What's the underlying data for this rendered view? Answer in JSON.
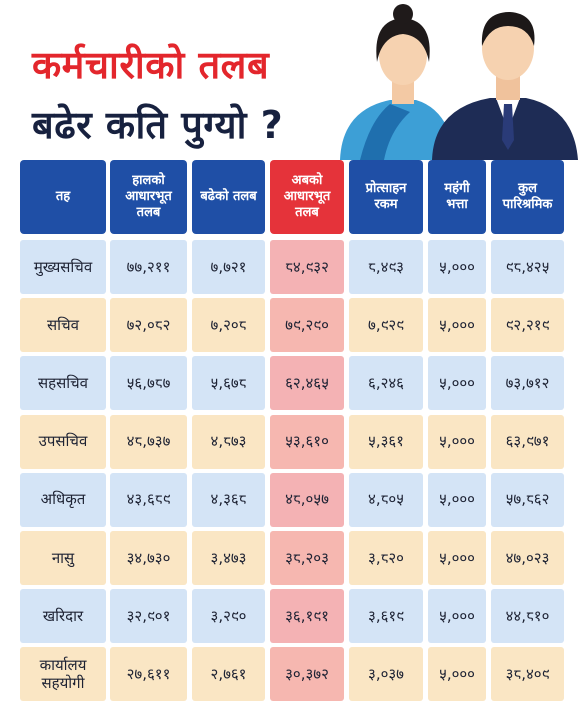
{
  "header": {
    "title_line1": "कर्मचारीको तलब",
    "title_line2": "बढेर कति पुग्यो ?"
  },
  "table": {
    "columns": [
      "तह",
      "हालको आधारभूत तलब",
      "बढेको तलब",
      "अबको आधारभूत तलब",
      "प्रोत्साहन रकम",
      "महंगी भत्ता",
      "कुल पारिश्रमिक"
    ],
    "rows": [
      [
        "मुख्यसचिव",
        "७७,२११",
        "७,७२१",
        "८४,९३२",
        "८,४९३",
        "५,०००",
        "९८,४२५"
      ],
      [
        "सचिव",
        "७२,०८२",
        "७,२०८",
        "७९,२९०",
        "७,९२९",
        "५,०००",
        "९२,२१९"
      ],
      [
        "सहसचिव",
        "५६,७८७",
        "५,६७८",
        "६२,४६५",
        "६,२४६",
        "५,०००",
        "७३,७१२"
      ],
      [
        "उपसचिव",
        "४८,७३७",
        "४,८७३",
        "५३,६१०",
        "५,३६१",
        "५,०००",
        "६३,९७१"
      ],
      [
        "अधिकृत",
        "४३,६८९",
        "४,३६८",
        "४८,०५७",
        "४,८०५",
        "५,०००",
        "५७,८६२"
      ],
      [
        "नासु",
        "३४,७३०",
        "३,४७३",
        "३८,२०३",
        "३,८२०",
        "५,०००",
        "४७,०२३"
      ],
      [
        "खरिदार",
        "३२,९०१",
        "३,२९०",
        "३६,१९१",
        "३,६१९",
        "५,०००",
        "४४,८१०"
      ],
      [
        "कार्यालय सहयोगी",
        "२७,६११",
        "२,७६१",
        "३०,३७२",
        "३,०३७",
        "५,०००",
        "३८,४०९"
      ]
    ]
  }
}
